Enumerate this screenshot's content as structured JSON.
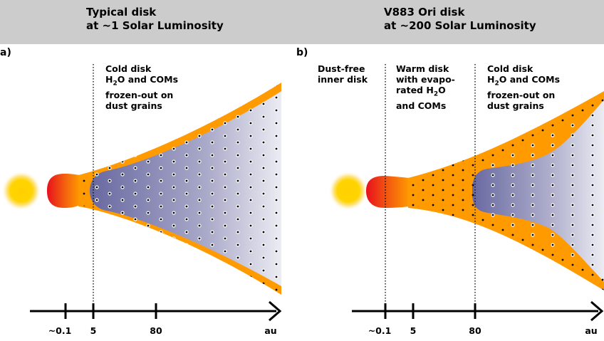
{
  "panels": [
    {
      "id": "a",
      "panel_label": "a)",
      "title_line1": "Typical disk",
      "title_line2": "at ~1 Solar Luminosity",
      "region_labels": [
        {
          "line1": "Cold disk",
          "line2_prefix": "H",
          "line2_sub": "2",
          "line2_suffix": "O and COMs",
          "line3": "frozen-out on",
          "line4": "dust grains"
        }
      ],
      "axis": {
        "ticks": [
          "~0.1",
          "5",
          "80"
        ],
        "unit": "au"
      }
    },
    {
      "id": "b",
      "panel_label": "b)",
      "title_line1": "V883 Ori disk",
      "title_line2": "at ~200 Solar Luminosity",
      "region_labels": [
        {
          "line1": "Dust-free",
          "line2": "inner disk"
        },
        {
          "line1": "Warm disk",
          "line2": "with evapo-",
          "line3_prefix": "rated H",
          "line3_sub": "2",
          "line3_suffix": "O",
          "line4": "and COMs"
        },
        {
          "line1": "Cold disk",
          "line2_prefix": "H",
          "line2_sub": "2",
          "line2_suffix": "O and COMs",
          "line3": "frozen-out on",
          "line4": "dust grains"
        }
      ],
      "axis": {
        "ticks": [
          "~0.1",
          "5",
          "80"
        ],
        "unit": "au"
      }
    }
  ],
  "colors": {
    "header_bg": "#cccccc",
    "warm_layer": "#ff9a00",
    "cold_disk_dark": "#6e6ea4",
    "cold_disk_light": "#e4e4ee",
    "star": "#ffd400",
    "inner_rim": "#e8141e"
  }
}
